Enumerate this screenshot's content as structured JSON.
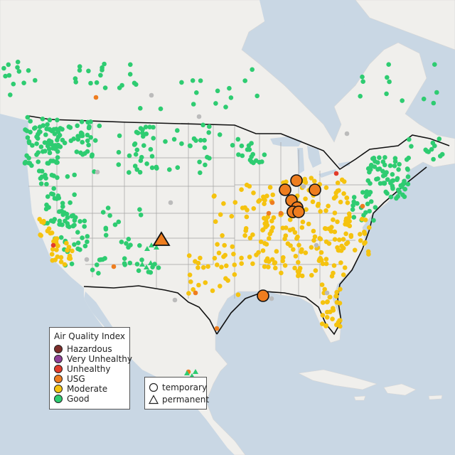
{
  "legend": {
    "title": "Air Quality Index",
    "categories": [
      {
        "label": "Hazardous",
        "color": "#7e2e2b"
      },
      {
        "label": "Very Unhealthy",
        "color": "#8f3f97"
      },
      {
        "label": "Unhealthy",
        "color": "#e23b2b"
      },
      {
        "label": "USG",
        "color": "#ee7d1f"
      },
      {
        "label": "Moderate",
        "color": "#f5c30f"
      },
      {
        "label": "Good",
        "color": "#2ecc71"
      }
    ]
  },
  "monitor_types": [
    {
      "label": "temporary",
      "shape": "circle"
    },
    {
      "label": "permanent",
      "shape": "triangle"
    }
  ],
  "colors": {
    "water": "#c9d7e4",
    "land": "#f0efec",
    "state_border": "#a0a0a0",
    "national_border": "#111111",
    "no_data": "#bbbbbb",
    "outline": "#111111"
  }
}
